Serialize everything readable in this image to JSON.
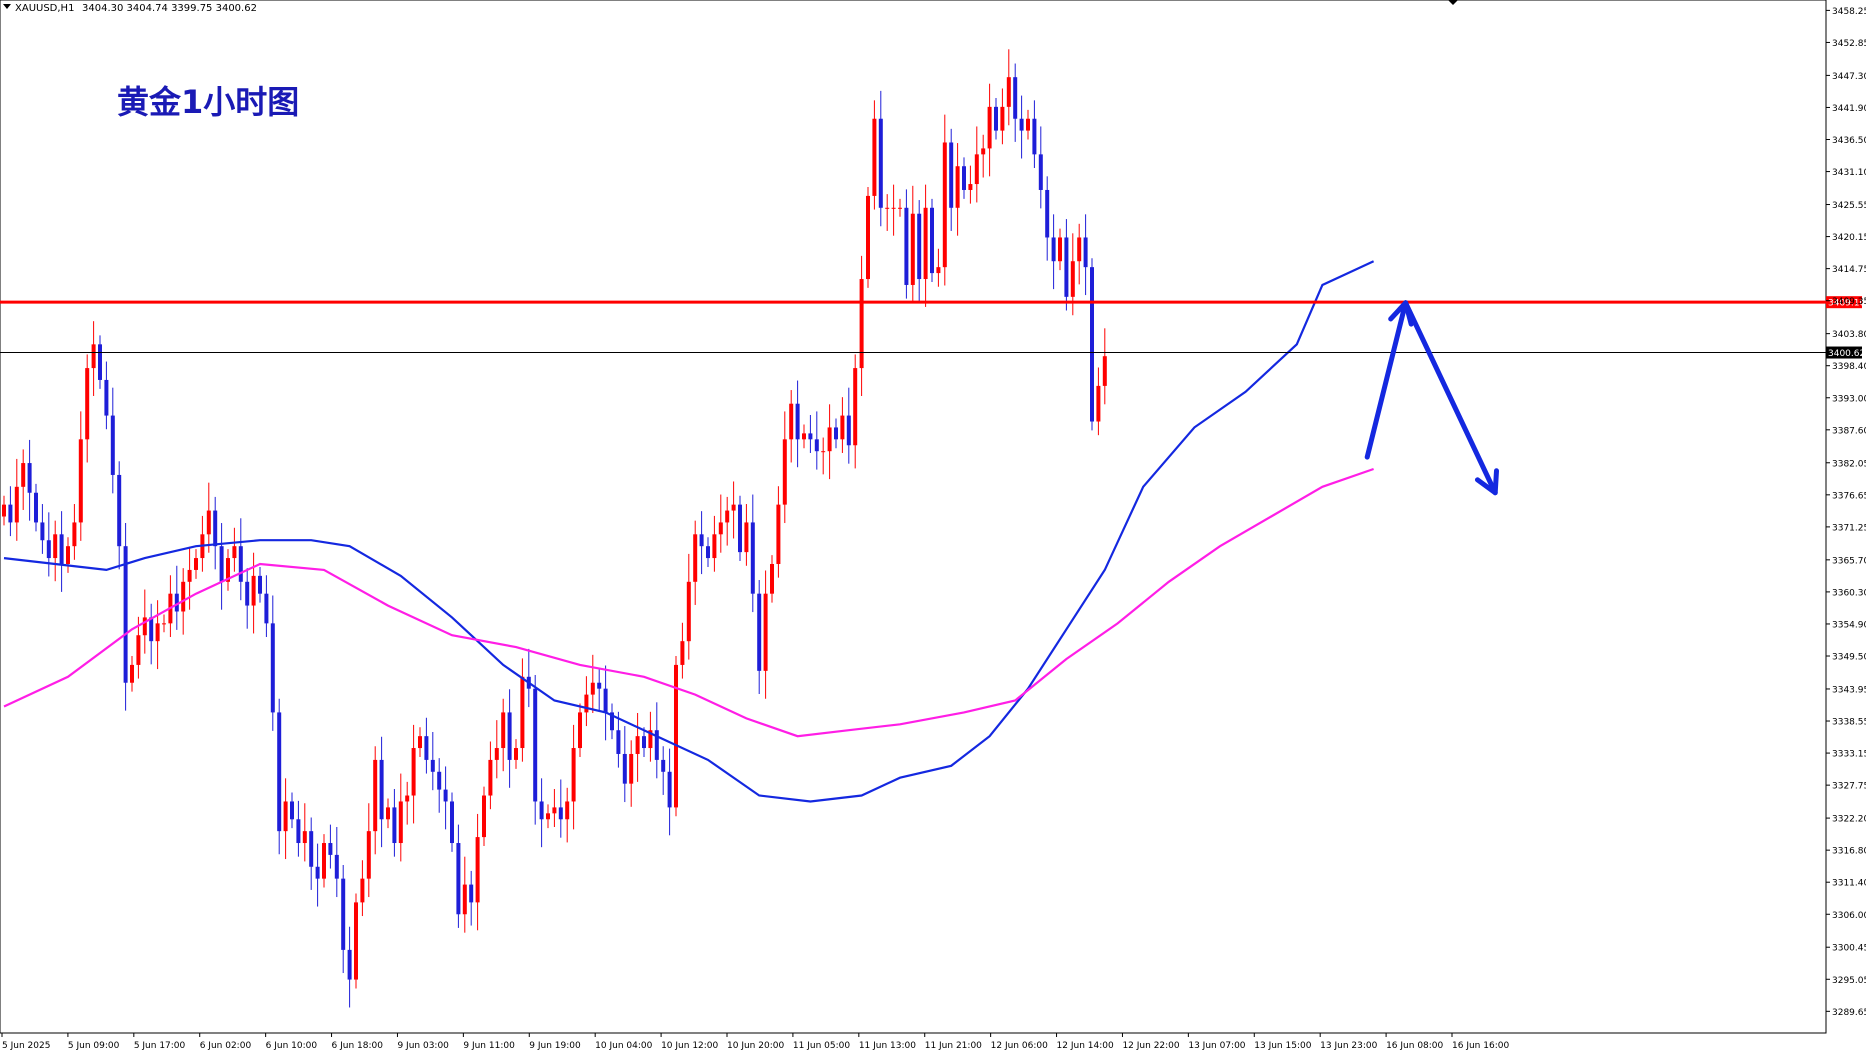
{
  "header": {
    "symbol": "XAUUSD,H1",
    "ohlc": "3404.30 3404.74 3399.75 3400.62"
  },
  "annotation": {
    "title": "黄金1小时图"
  },
  "chart_data": {
    "type": "candlestick",
    "symbol": "XAUUSD",
    "timeframe": "H1",
    "ylim": [
      3286,
      3460
    ],
    "y_ticks": [
      "3458.25",
      "3452.85",
      "3447.30",
      "3441.90",
      "3436.50",
      "3431.10",
      "3425.55",
      "3420.15",
      "3414.75",
      "3409.35",
      "3403.80",
      "3398.40",
      "3393.00",
      "3387.60",
      "3382.05",
      "3376.65",
      "3371.25",
      "3365.70",
      "3360.30",
      "3354.90",
      "3349.50",
      "3343.95",
      "3338.55",
      "3333.15",
      "3327.75",
      "3322.20",
      "3316.80",
      "3311.40",
      "3306.00",
      "3300.45",
      "3295.05",
      "3289.65"
    ],
    "x_ticks": [
      "5 Jun 2025",
      "5 Jun 09:00",
      "5 Jun 17:00",
      "6 Jun 02:00",
      "6 Jun 10:00",
      "6 Jun 18:00",
      "9 Jun 03:00",
      "9 Jun 11:00",
      "9 Jun 19:00",
      "10 Jun 04:00",
      "10 Jun 12:00",
      "10 Jun 20:00",
      "11 Jun 05:00",
      "11 Jun 13:00",
      "11 Jun 21:00",
      "12 Jun 06:00",
      "12 Jun 14:00",
      "12 Jun 22:00",
      "13 Jun 07:00",
      "13 Jun 15:00",
      "13 Jun 23:00",
      "16 Jun 08:00",
      "16 Jun 16:00"
    ],
    "horizontal_lines": [
      {
        "price": 3409.1,
        "label": "3409.10",
        "color": "#ff0000"
      },
      {
        "price": 3400.62,
        "label": "3400.62",
        "color": "#000000"
      }
    ],
    "closes": [
      3375,
      3372,
      3378,
      3382,
      3377,
      3372,
      3369,
      3366,
      3370,
      3365,
      3368,
      3372,
      3386,
      3398,
      3402,
      3396,
      3390,
      3380,
      3368,
      3345,
      3348,
      3353,
      3356,
      3352,
      3355,
      3355,
      3360,
      3357,
      3362,
      3364,
      3366,
      3370,
      3374,
      3368,
      3362,
      3366,
      3368,
      3362,
      3358,
      3363,
      3360,
      3355,
      3340,
      3320,
      3325,
      3322,
      3318,
      3320,
      3314,
      3312,
      3318,
      3316,
      3312,
      3300,
      3295,
      3308,
      3312,
      3320,
      3332,
      3322,
      3324,
      3318,
      3325,
      3326,
      3334,
      3336,
      3332,
      3330,
      3327,
      3325,
      3318,
      3306,
      3311,
      3308,
      3319,
      3326,
      3332,
      3334,
      3340,
      3332,
      3334,
      3346,
      3344,
      3325,
      3322,
      3323,
      3324,
      3322,
      3325,
      3334,
      3340,
      3343,
      3345,
      3344,
      3340,
      3337,
      3333,
      3328,
      3333,
      3336,
      3334,
      3337,
      3332,
      3330,
      3324,
      3348,
      3352,
      3362,
      3370,
      3368,
      3366,
      3370,
      3372,
      3374,
      3375,
      3367,
      3372,
      3360,
      3347,
      3360,
      3365,
      3375,
      3386,
      3392,
      3386,
      3387,
      3386,
      3384,
      3384,
      3388,
      3386,
      3390,
      3385,
      3398,
      3413,
      3427,
      3440,
      3425,
      3425,
      3425,
      3425,
      3412,
      3424,
      3413,
      3425,
      3414,
      3415,
      3436,
      3425,
      3432,
      3428,
      3429,
      3434,
      3435,
      3442,
      3438,
      3442,
      3447,
      3440,
      3438,
      3440,
      3434,
      3428,
      3420,
      3416,
      3420,
      3410,
      3416,
      3420,
      3415,
      3389,
      3395,
      3400
    ],
    "series": [
      {
        "name": "",
        "color": "#1428e0",
        "points": [
          [
            0,
            3366
          ],
          [
            8,
            3365
          ],
          [
            16,
            3364
          ],
          [
            22,
            3366
          ],
          [
            30,
            3368
          ],
          [
            40,
            3369
          ],
          [
            48,
            3369
          ],
          [
            54,
            3368
          ],
          [
            62,
            3363
          ],
          [
            70,
            3356
          ],
          [
            78,
            3348
          ],
          [
            86,
            3342
          ],
          [
            94,
            3340
          ],
          [
            102,
            3336
          ],
          [
            110,
            3332
          ],
          [
            118,
            3326
          ],
          [
            126,
            3325
          ],
          [
            134,
            3326
          ],
          [
            140,
            3329
          ],
          [
            148,
            3331
          ],
          [
            154,
            3336
          ],
          [
            160,
            3344
          ],
          [
            166,
            3354
          ],
          [
            172,
            3364
          ],
          [
            178,
            3378
          ],
          [
            186,
            3388
          ],
          [
            194,
            3394
          ],
          [
            202,
            3402
          ],
          [
            206,
            3412
          ],
          [
            210,
            3414
          ],
          [
            214,
            3416
          ]
        ]
      },
      {
        "name": "",
        "color": "#ff1ee6",
        "points": [
          [
            0,
            3341
          ],
          [
            10,
            3346
          ],
          [
            20,
            3354
          ],
          [
            30,
            3360
          ],
          [
            40,
            3365
          ],
          [
            50,
            3364
          ],
          [
            60,
            3358
          ],
          [
            70,
            3353
          ],
          [
            80,
            3351
          ],
          [
            90,
            3348
          ],
          [
            100,
            3346
          ],
          [
            108,
            3343
          ],
          [
            116,
            3339
          ],
          [
            124,
            3336
          ],
          [
            132,
            3337
          ],
          [
            140,
            3338
          ],
          [
            150,
            3340
          ],
          [
            158,
            3342
          ],
          [
            166,
            3349
          ],
          [
            174,
            3355
          ],
          [
            182,
            3362
          ],
          [
            190,
            3368
          ],
          [
            198,
            3373
          ],
          [
            206,
            3378
          ],
          [
            214,
            3381
          ]
        ]
      }
    ],
    "arrows": [
      {
        "points": [
          [
            213,
            3383
          ],
          [
            219,
            3409
          ]
        ],
        "color": "#1428e0"
      },
      {
        "points": [
          [
            219,
            3409
          ],
          [
            233,
            3377
          ]
        ],
        "color": "#1428e0"
      }
    ]
  }
}
